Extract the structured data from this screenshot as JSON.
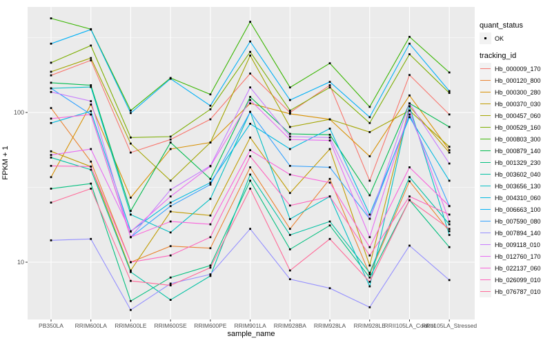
{
  "figure": {
    "legend": {
      "quant_status_title": "quant_status",
      "ok_label": "OK",
      "tracking_id_title": "tracking_id"
    }
  },
  "chart_data": {
    "type": "line",
    "title": "",
    "xlabel": "sample_name",
    "ylabel": "FPKM + 1",
    "y_scale": "log10",
    "y_ticks": [
      100,
      10
    ],
    "y_minor_gridlines": [
      316.2,
      31.62
    ],
    "ylim": [
      4.1,
      510
    ],
    "grid": true,
    "legend_position": "right",
    "point_color": "#000000",
    "panel_color": "#EBEBEB",
    "gridline_color": "#FFFFFF",
    "tick_label_color": "#4D4D4D",
    "categories": [
      "PB350LA",
      "RRIM600LA",
      "RRIM600LE",
      "RRIM600SE",
      "RRIM600PE",
      "RRIM901LA",
      "RRIM928BA",
      "RRIM928LA",
      "RRIM928LE",
      "RRII105LA_Control",
      "RRII105LA_Stressed"
    ],
    "series": [
      {
        "name": "Hb_000009_170",
        "color": "#F8766D",
        "values": [
          177,
          223,
          54,
          66,
          90,
          182,
          100,
          152,
          35,
          178,
          97
        ]
      },
      {
        "name": "Hb_000120_800",
        "color": "#EA8331",
        "values": [
          107,
          47,
          10,
          12.8,
          12.4,
          43,
          16.7,
          36,
          8.3,
          34.7,
          16.1
        ]
      },
      {
        "name": "Hb_000300_280",
        "color": "#D89000",
        "values": [
          37,
          113,
          27,
          57,
          63,
          115,
          98,
          90,
          51,
          130,
          56
        ]
      },
      {
        "name": "Hb_000370_030",
        "color": "#C09B00",
        "values": [
          55,
          43.5,
          8.8,
          21.8,
          20.5,
          68,
          29,
          57,
          9.5,
          110,
          54
        ]
      },
      {
        "name": "Hb_000457_060",
        "color": "#A3A500",
        "values": [
          187,
          231,
          62,
          35,
          63,
          240,
          80,
          90,
          74,
          103,
          59
        ]
      },
      {
        "name": "Hb_000529_160",
        "color": "#7CAE00",
        "values": [
          215,
          280,
          68,
          69,
          105,
          254,
          103,
          147,
          85,
          245,
          135
        ]
      },
      {
        "name": "Hb_000803_300",
        "color": "#39B600",
        "values": [
          425,
          360,
          103,
          170,
          132,
          403,
          147,
          213,
          109,
          320,
          185
        ]
      },
      {
        "name": "Hb_000879_140",
        "color": "#00BB4E",
        "values": [
          158,
          152,
          22,
          63,
          36,
          127,
          72,
          71,
          28,
          115,
          80
        ]
      },
      {
        "name": "Hb_001329_230",
        "color": "#00BF7D",
        "values": [
          31,
          33.5,
          5.5,
          7.9,
          9.5,
          35,
          12.2,
          17.6,
          7.9,
          26,
          12.6
        ]
      },
      {
        "name": "Hb_003602_040",
        "color": "#00C1A3",
        "values": [
          50,
          41.5,
          8.6,
          5.6,
          8.1,
          38.5,
          15.2,
          18.7,
          8.5,
          37,
          17.9
        ]
      },
      {
        "name": "Hb_003656_130",
        "color": "#00BFC4",
        "values": [
          145,
          148,
          20.8,
          15.8,
          26.5,
          101,
          19.4,
          27.5,
          6.9,
          110,
          15.2
        ]
      },
      {
        "name": "Hb_004310_060",
        "color": "#00BAE0",
        "values": [
          85,
          102,
          16.1,
          25,
          34,
          84,
          57,
          78,
          20.8,
          93,
          35
        ]
      },
      {
        "name": "Hb_006663_100",
        "color": "#00B0F6",
        "values": [
          288,
          358,
          99,
          168,
          111,
          298,
          121,
          160,
          93,
          288,
          139
        ]
      },
      {
        "name": "Hb_007590_080",
        "color": "#35A2FF",
        "values": [
          145,
          97,
          14.7,
          23.7,
          33,
          101,
          44,
          43,
          19.5,
          97,
          23.7
        ]
      },
      {
        "name": "Hb_007894_140",
        "color": "#9590FF",
        "values": [
          14,
          14.3,
          4.8,
          7.2,
          8.3,
          16.7,
          7.7,
          6.7,
          5.0,
          12.9,
          7.6
        ]
      },
      {
        "name": "Hb_009118_010",
        "color": "#C77CFF",
        "values": [
          137,
          119,
          14.7,
          30.5,
          44,
          147,
          69,
          68,
          19.5,
          115,
          45.6
        ]
      },
      {
        "name": "Hb_012760_170",
        "color": "#E76BF3",
        "values": [
          52,
          57,
          16,
          27.5,
          43.7,
          121,
          66,
          65,
          14.7,
          103,
          18.7
        ]
      },
      {
        "name": "Hb_022137_060",
        "color": "#FA62DB",
        "values": [
          91,
          97,
          14.7,
          18.7,
          17.9,
          56,
          38.5,
          34,
          12.6,
          43,
          23.7
        ]
      },
      {
        "name": "Hb_026099_010",
        "color": "#FF62BC",
        "values": [
          44,
          43.5,
          10,
          11.1,
          14.7,
          51,
          23.9,
          27.5,
          11.1,
          27.5,
          20.8
        ]
      },
      {
        "name": "Hb_076787_010",
        "color": "#FF6A98",
        "values": [
          25,
          31,
          7.5,
          7.0,
          9.2,
          31,
          8.8,
          14.3,
          7.4,
          26,
          16.7
        ]
      }
    ]
  }
}
